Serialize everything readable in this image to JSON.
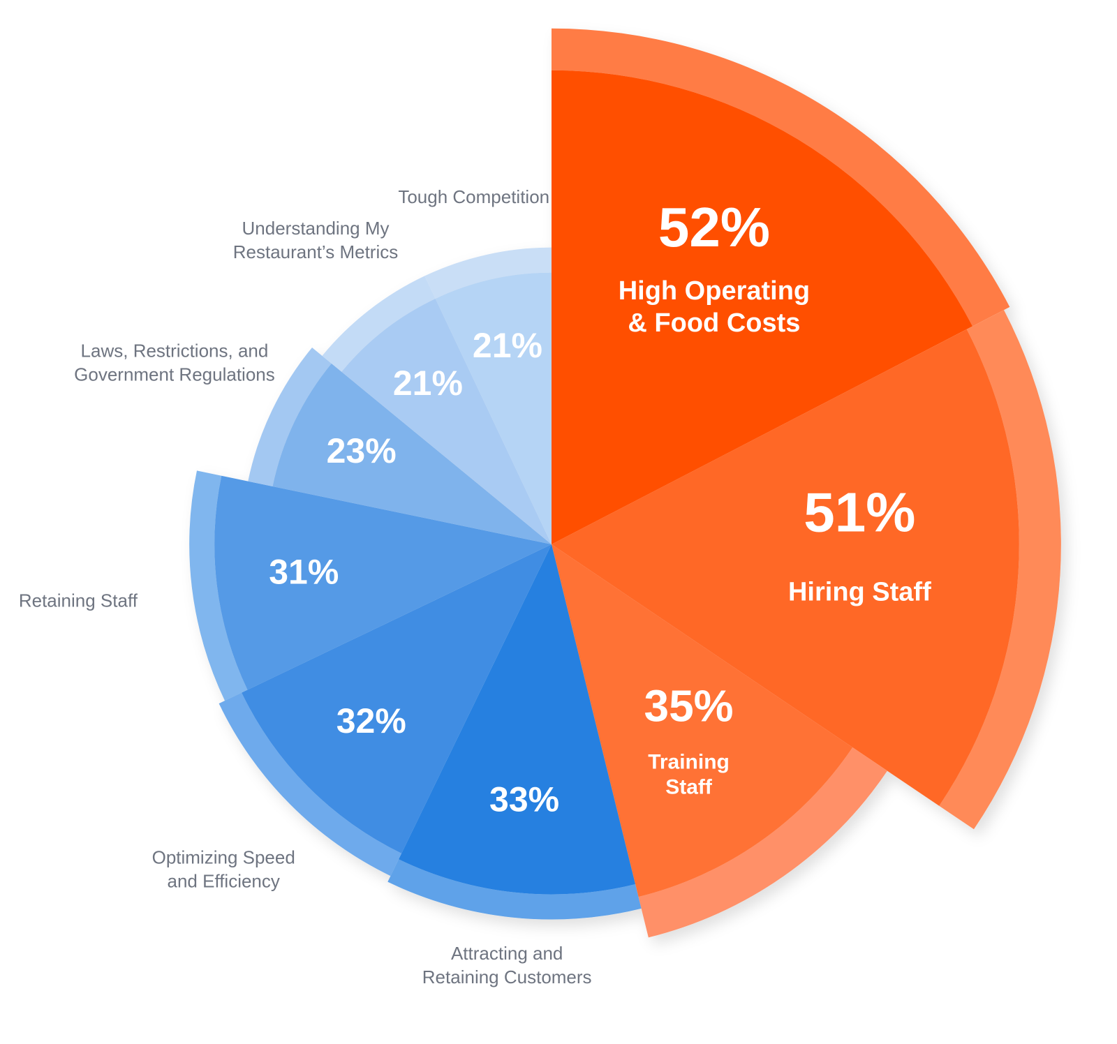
{
  "chart_data": {
    "type": "rose",
    "categories": [
      "High Operating\n& Food Costs",
      "Hiring Staff",
      "Training\nStaff",
      "Attracting and\nRetaining Customers",
      "Optimizing Speed\nand Efficiency",
      "Retaining Staff",
      "Laws, Restrictions, and\nGovernment Regulations",
      "Understanding My\nRestaurant’s Metrics",
      "Tough Competition"
    ],
    "values": [
      52,
      51,
      35,
      33,
      32,
      31,
      23,
      21,
      21
    ],
    "value_labels": [
      "52%",
      "51%",
      "35%",
      "33%",
      "32%",
      "31%",
      "23%",
      "21%",
      "21%"
    ],
    "colors": [
      "#ff5000",
      "#ff6826",
      "#ff7236",
      "#2680e0",
      "#3f8de3",
      "#549ae6",
      "#7fb3ec",
      "#a9cbf3",
      "#b5d4f5"
    ],
    "band_colors": [
      "#ff7c45",
      "#ff8a58",
      "#ff9068",
      "#5ea2e9",
      "#6eaaec",
      "#80b6ee",
      "#a3c8f2",
      "#c3dbf6",
      "#c9def6"
    ]
  }
}
